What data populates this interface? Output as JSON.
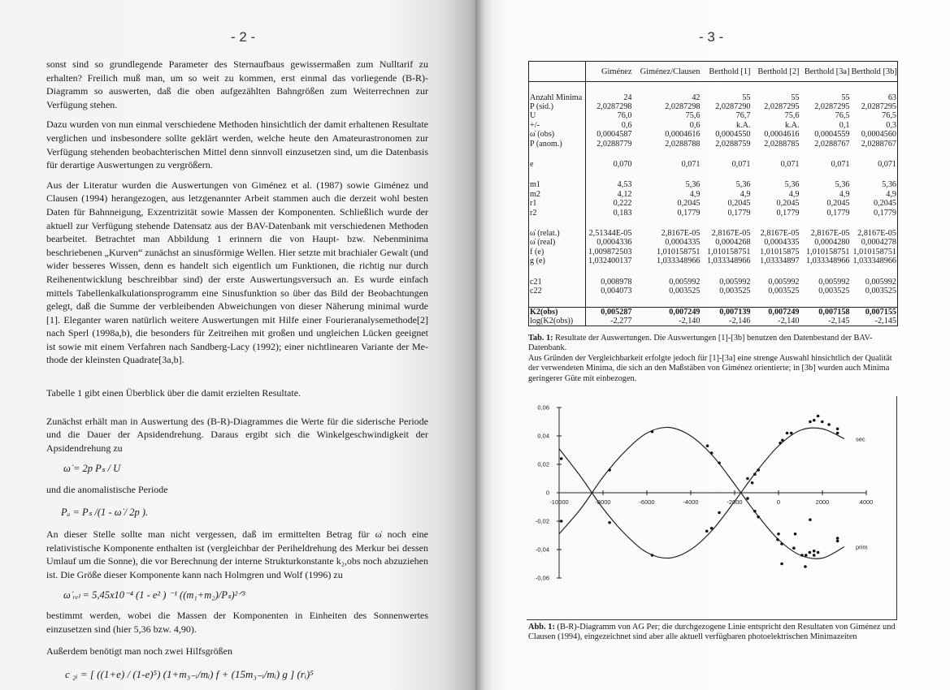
{
  "left_page": {
    "page_number": "- 2 -",
    "paragraphs": [
      "sonst sind so grundlegende Parameter des Sternaufbaus gewissermaßen zum Nulltarif zu erhalten? Freilich muß man, um so weit zu kommen, erst einmal das vorliegende (B-R)-Diagramm so auswerten, daß die oben aufgezählten Bahngrößen zum Weiterrechnen zur Verfügung stehen.",
      "Dazu wurden von nun einmal verschiedene Methoden hinsichtlich der damit erhaltenen Resultate vergli­chen und insbesondere sollte geklärt werden, welche heute den Amateurastronomen zur Verfügung ste­henden beobachterischen Mittel denn sinnvoll einzusetzen sind, um die Datenbasis für derartige Aus­wertungen zu vergrößern.",
      "Aus der Literatur wurden die Auswertungen von Giménez et al. (1987) sowie Giménez und Clausen (1994) herangezogen, aus letzgenannter Arbeit stammen auch die derzeit wohl besten Daten für Bahn­neigung, Exzentrizität sowie Massen der Komponenten. Schließlich wurde der aktuell zur Verfügung stehende Datensatz aus der BAV-Datenbank mit verschiedenen Methoden bearbeitet. Betrachtet man Abbildung 1 erinnern die von Haupt- bzw. Nebenminima beschriebenen „Kurven“ zunächst an sinus­förmige Wellen. Hier setzte mit brachialer Gewalt (und wider besseres Wissen, denn es handelt sich ei­gentlich um Funktionen, die richtig nur durch Reihenentwicklung beschreibbar sind) der erste Auswer­tungsversuch an. Es wurde einfach mittels Tabellenkalkulationsprogramm eine Sinusfunktion so über das Bild der Beobachtungen gelegt, daß die Summe der verbleibenden Abweichungen von dieser Nähe­rung minimal wurde [1]. Eleganter waren natürlich weitere Auswertungen mit Hilfe einer Fourieranaly­semethode[2] nach Sperl (1998a,b), die besonders für Zeitreihen mit großen und ungleichen Lücken ge­eignet ist sowie mit einem Verfahren nach Sandberg-Lacy (1992); einer nichtlinearen Variante der Me­thode der kleinsten Quadrate[3a,b].",
      "Tabelle 1 gibt einen Überblick über die damit erzielten Resultate.",
      "Zunächst erhält man in Auswertung des (B-R)-Diagrammes die Werte für die siderische Periode und die Dauer der Apsidendrehung. Daraus ergibt sich die Winkelgeschwindigkeit der Apsidendrehung zu",
      "und die anomalistische Periode",
      "An dieser Stelle sollte man nicht vergessen, daß im ermittelten Betrag für ω̇ noch eine relativistische Komponente enthalten ist (vergleichbar der Periheldrehung des Merkur bei dessen Umlauf um die Sonne), die vor Berechnung der interne Strukturkonstante k₂,obs noch abzuziehen ist. Die Größe dieser Komponente kann nach Holmgren und Wolf (1996) zu",
      "bestimmt werden, wobei die Massen der Komponenten in Einheiten des Sonnenwertes einzusetzen sind (hier 5,36 bzw. 4,90).",
      "Außerdem benötigt man noch zwei Hilfsgrößen"
    ],
    "equations": [
      "ω̇ =  2p Pₛ / U",
      "Pₐ =  Pₛ /(1 - ω̇ / 2p ).",
      "ω̇ ᵣₑₗ =  5,45x10⁻⁴ (1 - e² ) ⁻¹ ((m₁+m₂)/Pₛ)²ᐟ³",
      "c ₂ᵢ =  [ ((1+e) / (1-e)⁵) (1+m₃₋ᵢ/mᵢ) f + (15m₃₋ᵢ/mᵢ)  g ] (rᵢ)⁵"
    ]
  },
  "right_page": {
    "page_number": "- 3 -",
    "table": {
      "columns": [
        "",
        "Giménez",
        "Giménez/Clausen",
        "Berthold [1]",
        "Berthold [2]",
        "Berthold [3a]",
        "Berthold [3b]"
      ],
      "groups": [
        [
          [
            "Anzahl Minima",
            "24",
            "42",
            "55",
            "55",
            "55",
            "63"
          ],
          [
            "P (sid.)",
            "2,0287298",
            "2,0287298",
            "2,0287290",
            "2,0287295",
            "2,0287295",
            "2,0287295"
          ],
          [
            "U",
            "76,0",
            "75,6",
            "76,7",
            "75,6",
            "76,5",
            "76,5"
          ],
          [
            "+/-",
            "0,6",
            "0,6",
            "k.A.",
            "k.A.",
            "0,1",
            "0,3"
          ],
          [
            "ω̇ (obs)",
            "0,0004587",
            "0,0004616",
            "0,0004550",
            "0,0004616",
            "0,0004559",
            "0,0004560"
          ],
          [
            "P (anom.)",
            "2,0288779",
            "2,0288788",
            "2,0288759",
            "2,0288785",
            "2,0288767",
            "2,0288767"
          ]
        ],
        [
          [
            "e",
            "0,070",
            "0,071",
            "0,071",
            "0,071",
            "0,071",
            "0,071"
          ]
        ],
        [
          [
            "m1",
            "4,53",
            "5,36",
            "5,36",
            "5,36",
            "5,36",
            "5,36"
          ],
          [
            "m2",
            "4,12",
            "4,9",
            "4,9",
            "4,9",
            "4,9",
            "4,9"
          ],
          [
            "r1",
            "0,222",
            "0,2045",
            "0,2045",
            "0,2045",
            "0,2045",
            "0,2045"
          ],
          [
            "r2",
            "0,183",
            "0,1779",
            "0,1779",
            "0,1779",
            "0,1779",
            "0,1779"
          ]
        ],
        [
          [
            "ω̇ (relat.)",
            "2,51344E-05",
            "2,8167E-05",
            "2,8167E-05",
            "2,8167E-05",
            "2,8167E-05",
            "2,8167E-05"
          ],
          [
            "ω̇ (real)",
            "0,0004336",
            "0,0004335",
            "0,0004268",
            "0,0004335",
            "0,0004280",
            "0,0004278"
          ],
          [
            "f (e)",
            "1,009872503",
            "1,010158751",
            "1,010158751",
            "1,01015875",
            "1,010158751",
            "1,010158751"
          ],
          [
            "g (e)",
            "1,032400137",
            "1,033348966",
            "1,033348966",
            "1,03334897",
            "1,033348966",
            "1,033348966"
          ]
        ],
        [
          [
            "c21",
            "0,008978",
            "0,005992",
            "0,005992",
            "0,005992",
            "0,005992",
            "0,005992"
          ],
          [
            "c22",
            "0,004073",
            "0,003525",
            "0,003525",
            "0,003525",
            "0,003525",
            "0,003525"
          ]
        ]
      ],
      "result_rows": [
        [
          "K2(obs)",
          "0,005287",
          "0,007249",
          "0,007139",
          "0,007249",
          "0,007158",
          "0,007155"
        ],
        [
          "log(K2(obs))",
          "-2,277",
          "-2,140",
          "-2,146",
          "-2,140",
          "-2,145",
          "-2,145"
        ]
      ]
    },
    "table_caption": {
      "label": "Tab. 1:",
      "text": " Resultate der Auswertungen. Die Auswertungen [1]-[3b] benutzen den Datenbestand der BAV-Datenbank.",
      "text2": "Aus Gründen der Vergleichbarkeit erfolgte jedoch für [1]-[3a] eine strenge Auswahl hinsichtlich der Qua­lität der verwendeten Minima, die sich an den Maßstäben von Giménez orientierte; in [3b] wurden auch Minima geringerer Güte mit einbezogen."
    },
    "figure_caption": {
      "label": "Abb. 1:",
      "text": " (B-R)-Diagramm von AG Per; die durchgezogene Linie entspricht den Resultaten von Giménez und Clausen (1994), eingezeichnet sind aber alle aktuell verfügbaren photoelektrischen Minimazeiten"
    }
  },
  "chart_data": {
    "type": "scatter",
    "xlim": [
      -10000,
      4000
    ],
    "ylim": [
      -0.06,
      0.06
    ],
    "x_ticks": [
      "-10000",
      "-8000",
      "-6000",
      "-4000",
      "-2000",
      "0",
      "2000",
      "4000"
    ],
    "y_ticks": [
      "0,06",
      "0,04",
      "0,02",
      "0",
      "-0,02",
      "-0,04",
      "-0,06"
    ],
    "grid": false,
    "series": [
      {
        "name": "sec",
        "curve": [
          [
            -10000,
            0.031
          ],
          [
            -9000,
            0.011
          ],
          [
            -8000,
            -0.011
          ],
          [
            -7000,
            -0.029
          ],
          [
            -6000,
            -0.042
          ],
          [
            -5000,
            -0.046
          ],
          [
            -4000,
            -0.04
          ],
          [
            -3000,
            -0.026
          ],
          [
            -2000,
            -0.006
          ],
          [
            -1000,
            0.015
          ],
          [
            0,
            0.033
          ],
          [
            1000,
            0.044
          ],
          [
            2000,
            0.045
          ],
          [
            3000,
            0.038
          ]
        ],
        "points": [
          [
            -9900,
            0.024
          ],
          [
            -7700,
            0.016
          ],
          [
            -5760,
            0.043
          ],
          [
            -3240,
            0.033
          ],
          [
            -3050,
            0.028
          ],
          [
            -2700,
            0.021
          ],
          [
            -1410,
            0.01
          ],
          [
            -1200,
            0.007
          ],
          [
            -1080,
            0.013
          ],
          [
            -920,
            0.016
          ],
          [
            80,
            0.035
          ],
          [
            180,
            0.037
          ],
          [
            390,
            0.042
          ],
          [
            580,
            0.042
          ],
          [
            1440,
            0.05
          ],
          [
            1620,
            0.051
          ],
          [
            1800,
            0.054
          ],
          [
            1990,
            0.05
          ],
          [
            2300,
            0.048
          ],
          [
            2690,
            0.045
          ],
          [
            2690,
            0.042
          ]
        ]
      },
      {
        "name": "prim",
        "curve": [
          [
            -10000,
            -0.029
          ],
          [
            -9000,
            -0.011
          ],
          [
            -8000,
            0.011
          ],
          [
            -7000,
            0.029
          ],
          [
            -6000,
            0.042
          ],
          [
            -5000,
            0.046
          ],
          [
            -4000,
            0.04
          ],
          [
            -3000,
            0.026
          ],
          [
            -2000,
            0.006
          ],
          [
            -1000,
            -0.015
          ],
          [
            0,
            -0.033
          ],
          [
            1000,
            -0.044
          ],
          [
            2000,
            -0.046
          ],
          [
            3000,
            -0.038
          ]
        ],
        "points": [
          [
            -9900,
            -0.02
          ],
          [
            -7700,
            -0.021
          ],
          [
            -5760,
            -0.044
          ],
          [
            -3270,
            -0.027
          ],
          [
            -3050,
            -0.025
          ],
          [
            -2700,
            -0.014
          ],
          [
            -1410,
            -0.004
          ],
          [
            -1080,
            -0.013
          ],
          [
            -920,
            -0.017
          ],
          [
            0,
            -0.029
          ],
          [
            -40,
            -0.033
          ],
          [
            150,
            -0.036
          ],
          [
            150,
            -0.05
          ],
          [
            700,
            -0.039
          ],
          [
            760,
            -0.029
          ],
          [
            1070,
            -0.044
          ],
          [
            1220,
            -0.052
          ],
          [
            1250,
            -0.044
          ],
          [
            1440,
            -0.019
          ],
          [
            1420,
            -0.042
          ],
          [
            1620,
            -0.041
          ],
          [
            1620,
            -0.044
          ],
          [
            1800,
            -0.042
          ],
          [
            2690,
            -0.032
          ],
          [
            2690,
            -0.034
          ]
        ]
      }
    ]
  }
}
